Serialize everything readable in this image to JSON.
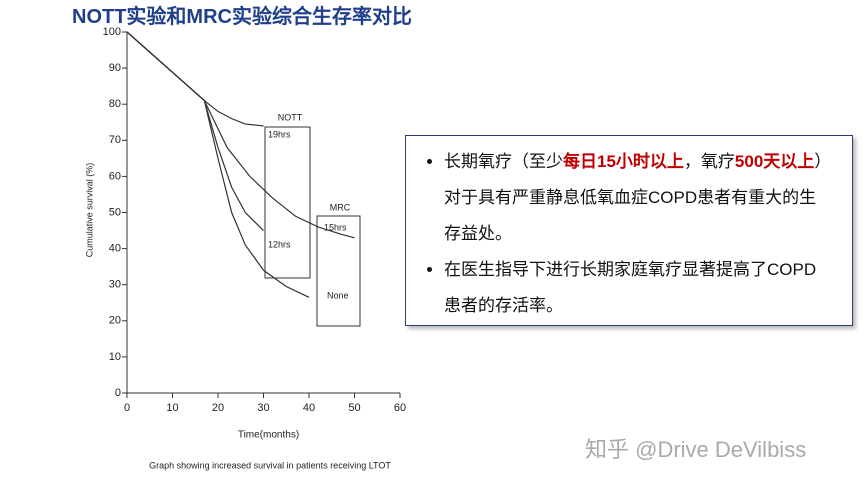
{
  "header": {
    "title": "NOTT实验和MRC实验综合生存率对比"
  },
  "chart_data": {
    "type": "line",
    "xlabel": "Time(months)",
    "ylabel": "Cumulative survival (%)",
    "caption": "Graph showing increased survival in patients receiving LTOT",
    "xlim": [
      0,
      60
    ],
    "xticks": [
      0,
      10,
      20,
      30,
      40,
      50,
      60
    ],
    "ylim": [
      0,
      100
    ],
    "yticks": [
      0,
      10,
      20,
      30,
      40,
      50,
      60,
      70,
      80,
      90,
      100
    ],
    "annotations": [
      "NOTT",
      "MRC"
    ],
    "series": [
      {
        "name": "19hrs",
        "color": "#333333",
        "x": [
          0,
          17,
          20,
          23,
          26,
          30
        ],
        "values": [
          100,
          81,
          78,
          76,
          74.5,
          74
        ]
      },
      {
        "name": "12hrs",
        "color": "#333333",
        "x": [
          0,
          17,
          20,
          23,
          26,
          30
        ],
        "values": [
          100,
          81,
          68,
          57,
          50,
          45
        ]
      },
      {
        "name": "15hrs",
        "color": "#333333",
        "x": [
          0,
          17,
          22,
          27,
          32,
          37,
          42,
          47,
          50
        ],
        "values": [
          100,
          81,
          68,
          60,
          54,
          49,
          46,
          44,
          43
        ]
      },
      {
        "name": "None",
        "color": "#333333",
        "x": [
          0,
          17,
          20,
          23,
          26,
          30,
          35,
          40
        ],
        "values": [
          100,
          81,
          65,
          50,
          41,
          34,
          29.5,
          26.5
        ]
      }
    ]
  },
  "text_box": {
    "bullets": [
      [
        {
          "text": "长期氧疗（至少"
        },
        {
          "text": "每日15小时以上",
          "color": "#c00000"
        },
        {
          "text": "，氧疗"
        },
        {
          "text": "500天以上",
          "color": "#c00000"
        },
        {
          "text": "）对于具有严重静息低氧血症COPD患者有重大的生存益处。"
        }
      ],
      [
        {
          "text": "在医生指导下进行长期家庭氧疗显著提高了COPD患者的存活率。"
        }
      ]
    ]
  },
  "watermark": "知乎 @Drive DeVilbiss"
}
